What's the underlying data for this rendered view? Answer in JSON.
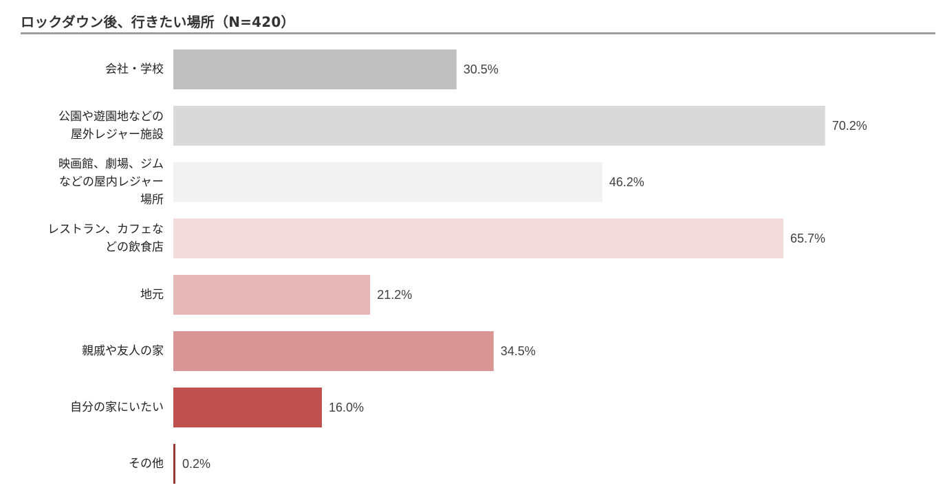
{
  "chart_data": {
    "type": "bar",
    "orientation": "horizontal",
    "title": "ロックダウン後、行きたい場所（N=420）",
    "categories": [
      [
        "会社・学校"
      ],
      [
        "公園や遊園地などの",
        "屋外レジャー施設"
      ],
      [
        "映画館、劇場、ジム",
        "などの屋内レジャー",
        "場所"
      ],
      [
        "レストラン、カフェな",
        "どの飲食店"
      ],
      [
        "地元"
      ],
      [
        "親戚や友人の家"
      ],
      [
        "自分の家にいたい"
      ],
      [
        "その他"
      ]
    ],
    "values": [
      30.5,
      70.2,
      46.2,
      65.7,
      21.2,
      34.5,
      16.0,
      0.2
    ],
    "value_labels": [
      "30.5%",
      "70.2%",
      "46.2%",
      "65.7%",
      "21.2%",
      "34.5%",
      "16.0%",
      "0.2%"
    ],
    "colors": [
      "#bfbfbf",
      "#d9d9d9",
      "#f2f2f2",
      "#f2dcdb",
      "#e6b9b8",
      "#d99694",
      "#c0504d",
      "#953735"
    ],
    "xlim": [
      0,
      100
    ],
    "grid": false,
    "legend": "none"
  }
}
